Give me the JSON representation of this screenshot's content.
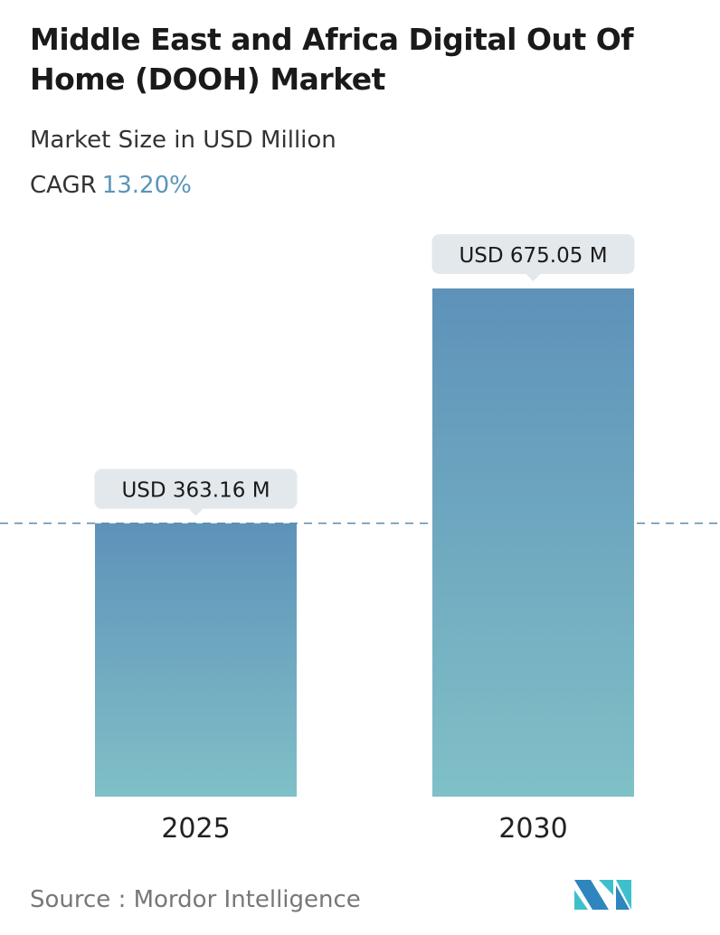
{
  "title": "Middle East and Africa Digital Out Of Home (DOOH) Market",
  "subtitle": "Market Size in USD Million",
  "cagr_label": "CAGR",
  "cagr_value": "13.20%",
  "source": "Source :  Mordor Intelligence",
  "logo_text": "MI",
  "colors": {
    "bar_top": "#5e92b9",
    "bar_bottom": "#80c0c7",
    "accent": "#5b95bb",
    "label_bg": "#e3e8ec"
  },
  "chart_data": {
    "type": "bar",
    "categories": [
      "2025",
      "2030"
    ],
    "values": [
      363.16,
      675.05
    ],
    "data_labels": [
      "USD 363.16 M",
      "USD 675.05 M"
    ],
    "xlabel": "",
    "ylabel": "",
    "ylim": [
      0,
      675.05
    ],
    "grid": false,
    "reference_line": 363.16
  }
}
